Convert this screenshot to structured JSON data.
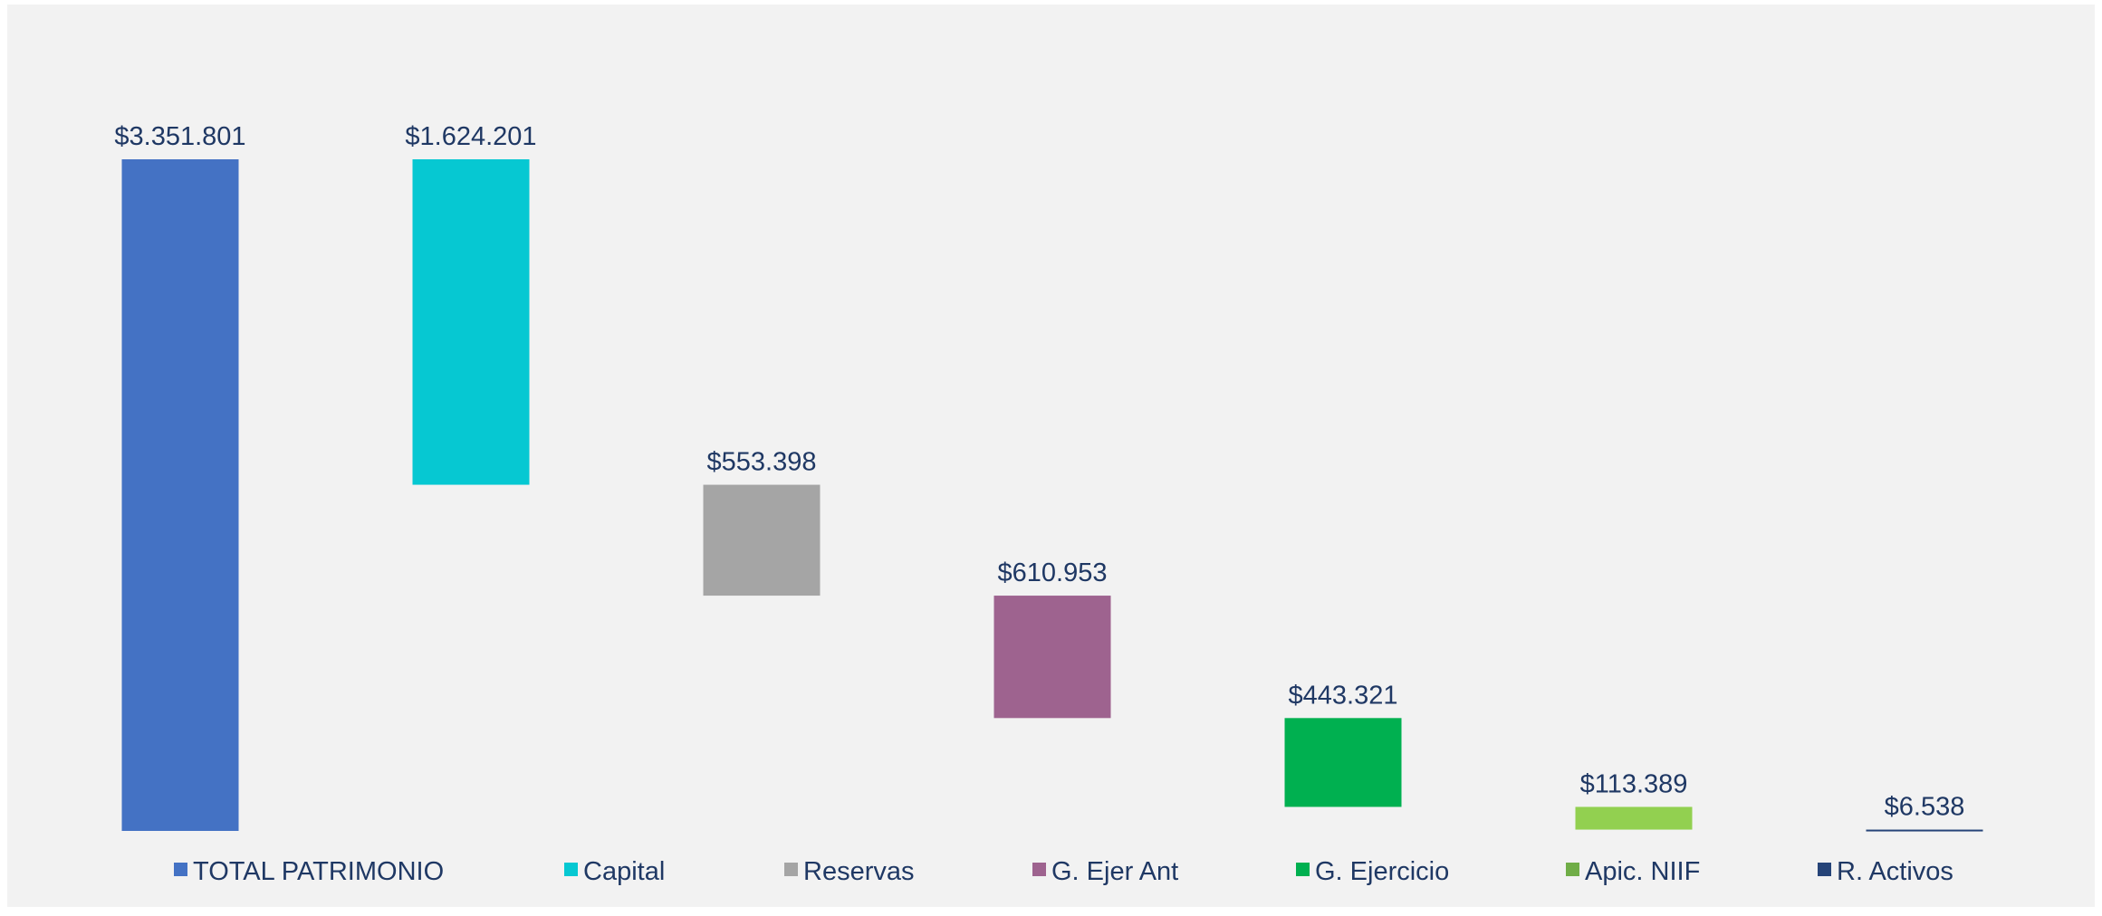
{
  "chart_data": {
    "type": "waterfall",
    "categories": [
      "TOTAL PATRIMONIO",
      "Capital",
      "Reservas",
      "G. Ejer Ant",
      "G. Ejercicio",
      "Apic. NIIF",
      "R. Activos"
    ],
    "values": [
      3351801,
      1624201,
      553398,
      610953,
      443321,
      113389,
      6538
    ],
    "value_labels": [
      "$3.351.801",
      "$1.624.201",
      "$553.398",
      "$610.953",
      "$443.321",
      "$113.389",
      "$6.538"
    ],
    "colors": [
      "#4472c4",
      "#06c8d2",
      "#a5a5a5",
      "#9e638f",
      "#00b050",
      "#92d050",
      "#264478"
    ],
    "legend_colors": [
      "#4472c4",
      "#06c8d2",
      "#a5a5a5",
      "#9e638f",
      "#00b050",
      "#70ad47",
      "#264478"
    ],
    "legend": "bottom"
  }
}
